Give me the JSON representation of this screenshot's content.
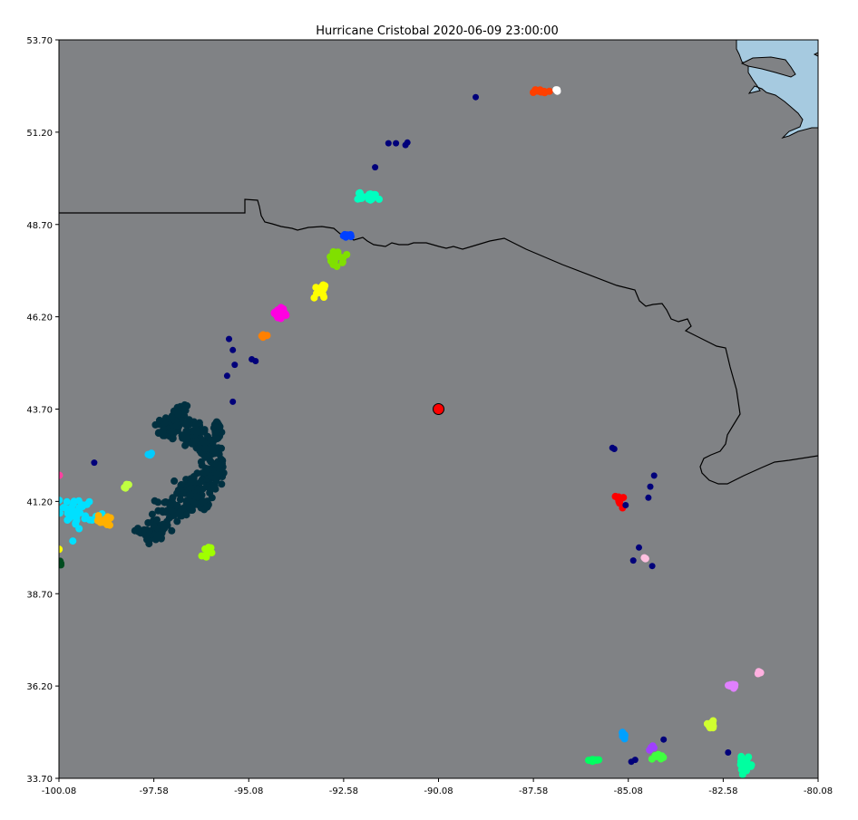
{
  "chart_data": {
    "type": "scatter",
    "title": "Hurricane Cristobal 2020-06-09 23:00:00",
    "xlabel": "",
    "ylabel": "",
    "xlim": [
      -100.08,
      -80.08
    ],
    "ylim": [
      33.7,
      53.7
    ],
    "x_ticks": [
      "-100.08",
      "-97.58",
      "-95.08",
      "-92.58",
      "-90.08",
      "-87.58",
      "-85.08",
      "-82.58",
      "-80.08"
    ],
    "y_ticks": [
      "53.70",
      "51.20",
      "48.70",
      "46.20",
      "43.70",
      "41.20",
      "38.70",
      "36.20",
      "33.70"
    ],
    "grid": false,
    "background_color": "#808285",
    "water_color": "#a6cae0",
    "center_marker": {
      "lon": -90.08,
      "lat": 43.7,
      "color": "#ff0000"
    },
    "clusters": [
      {
        "color": "#ff4000",
        "lon": -87.4,
        "lat": 52.3,
        "sx": 0.25,
        "sy": 0.07,
        "n": 14
      },
      {
        "color": "#ffffff",
        "lon": -86.95,
        "lat": 52.35,
        "sx": 0.05,
        "sy": 0.03,
        "n": 3
      },
      {
        "color": "#00ffc0",
        "lon": -91.9,
        "lat": 49.45,
        "sx": 0.3,
        "sy": 0.12,
        "n": 22
      },
      {
        "color": "#0040ff",
        "lon": -92.45,
        "lat": 48.4,
        "sx": 0.15,
        "sy": 0.05,
        "n": 8
      },
      {
        "color": "#80e000",
        "lon": -92.8,
        "lat": 47.75,
        "sx": 0.2,
        "sy": 0.2,
        "n": 18
      },
      {
        "color": "#ffff00",
        "lon": -93.2,
        "lat": 46.95,
        "sx": 0.15,
        "sy": 0.25,
        "n": 16
      },
      {
        "color": "#ff00e0",
        "lon": -94.25,
        "lat": 46.3,
        "sx": 0.2,
        "sy": 0.15,
        "n": 18
      },
      {
        "color": "#ff8000",
        "lon": -94.7,
        "lat": 45.7,
        "sx": 0.07,
        "sy": 0.07,
        "n": 6
      },
      {
        "color": "#00ccff",
        "lon": -97.65,
        "lat": 42.5,
        "sx": 0.07,
        "sy": 0.06,
        "n": 5
      },
      {
        "color": "#c0ff40",
        "lon": -98.3,
        "lat": 41.6,
        "sx": 0.08,
        "sy": 0.08,
        "n": 5
      },
      {
        "color": "#00e0ff",
        "lon": -99.6,
        "lat": 40.9,
        "sx": 0.45,
        "sy": 0.4,
        "n": 40
      },
      {
        "color": "#ffb000",
        "lon": -98.85,
        "lat": 40.7,
        "sx": 0.2,
        "sy": 0.15,
        "n": 16
      },
      {
        "color": "#a0ff00",
        "lon": -96.2,
        "lat": 39.8,
        "sx": 0.12,
        "sy": 0.18,
        "n": 14
      },
      {
        "color": "#004d20",
        "lon": -100.05,
        "lat": 39.5,
        "sx": 0.03,
        "sy": 0.12,
        "n": 5
      },
      {
        "color": "#ffff00",
        "lon": -100.08,
        "lat": 39.9,
        "sx": 0.02,
        "sy": 0.02,
        "n": 2
      },
      {
        "color": "#ff40a0",
        "lon": -100.08,
        "lat": 41.9,
        "sx": 0.02,
        "sy": 0.02,
        "n": 2
      },
      {
        "color": "#ff0000",
        "lon": -85.3,
        "lat": 41.25,
        "sx": 0.1,
        "sy": 0.15,
        "n": 12
      },
      {
        "color": "#ffc0e0",
        "lon": -84.65,
        "lat": 39.65,
        "sx": 0.04,
        "sy": 0.03,
        "n": 3
      },
      {
        "color": "#e080ff",
        "lon": -82.35,
        "lat": 36.2,
        "sx": 0.18,
        "sy": 0.08,
        "n": 10
      },
      {
        "color": "#ffb0e0",
        "lon": -81.65,
        "lat": 36.55,
        "sx": 0.1,
        "sy": 0.05,
        "n": 6
      },
      {
        "color": "#d0ff30",
        "lon": -82.9,
        "lat": 35.15,
        "sx": 0.15,
        "sy": 0.1,
        "n": 10
      },
      {
        "color": "#00a0ff",
        "lon": -85.2,
        "lat": 34.85,
        "sx": 0.12,
        "sy": 0.1,
        "n": 10
      },
      {
        "color": "#a040ff",
        "lon": -84.45,
        "lat": 34.55,
        "sx": 0.08,
        "sy": 0.08,
        "n": 6
      },
      {
        "color": "#40ff40",
        "lon": -84.3,
        "lat": 34.3,
        "sx": 0.15,
        "sy": 0.08,
        "n": 10
      },
      {
        "color": "#00ff60",
        "lon": -85.95,
        "lat": 34.2,
        "sx": 0.15,
        "sy": 0.05,
        "n": 8
      },
      {
        "color": "#00ffa0",
        "lon": -82.0,
        "lat": 34.05,
        "sx": 0.2,
        "sy": 0.2,
        "n": 18
      }
    ],
    "navy_points": {
      "color": "#00007a",
      "points": [
        [
          -89.1,
          52.15
        ],
        [
          -91.4,
          50.9
        ],
        [
          -91.2,
          50.9
        ],
        [
          -90.95,
          50.85
        ],
        [
          -90.9,
          50.92
        ],
        [
          -91.75,
          50.25
        ],
        [
          -95.6,
          45.6
        ],
        [
          -95.5,
          45.3
        ],
        [
          -95.45,
          44.9
        ],
        [
          -95.0,
          45.05
        ],
        [
          -94.9,
          45.0
        ],
        [
          -95.65,
          44.6
        ],
        [
          -95.5,
          43.9
        ],
        [
          -99.15,
          42.25
        ],
        [
          -84.4,
          41.9
        ],
        [
          -84.5,
          41.6
        ],
        [
          -84.55,
          41.3
        ],
        [
          -85.5,
          42.65
        ],
        [
          -85.45,
          42.62
        ],
        [
          -85.15,
          41.1
        ],
        [
          -84.8,
          39.95
        ],
        [
          -84.95,
          39.6
        ],
        [
          -84.45,
          39.45
        ],
        [
          -84.15,
          34.75
        ],
        [
          -82.45,
          34.4
        ],
        [
          -84.9,
          34.2
        ],
        [
          -85.0,
          34.15
        ]
      ]
    },
    "dense_cluster": {
      "color": "#003040",
      "center_lon": -96.7,
      "center_lat": 41.8,
      "sx": 1.4,
      "sy": 1.7,
      "n": 500
    }
  }
}
